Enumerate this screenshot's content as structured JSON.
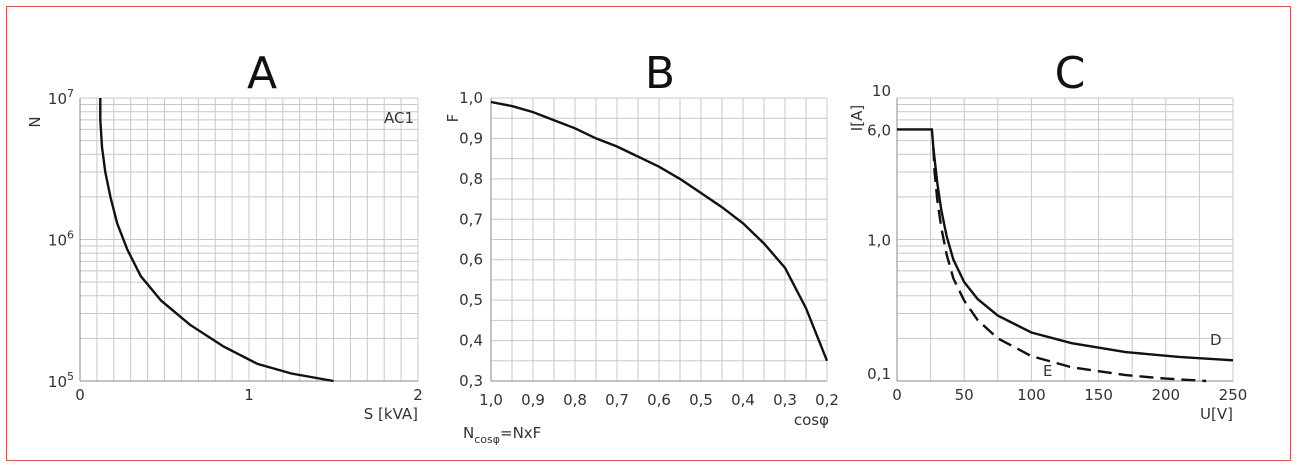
{
  "chart_data": [
    {
      "type": "line",
      "letter": "A",
      "xlabel": "S [kVA]",
      "ylabel": "N",
      "annotation": "AC1",
      "x_ticks": [
        "0",
        "1",
        "2"
      ],
      "y_ticks": [
        {
          "base": "10",
          "exp": "5"
        },
        {
          "base": "10",
          "exp": "6"
        },
        {
          "base": "10",
          "exp": "7"
        }
      ],
      "xlim": [
        0,
        2
      ],
      "ylim": [
        100000,
        10000000
      ],
      "y_scale": "log",
      "grid": true,
      "series": [
        {
          "style": "solid",
          "x": [
            0.12,
            0.12,
            0.13,
            0.15,
            0.18,
            0.22,
            0.28,
            0.36,
            0.48,
            0.65,
            0.85,
            1.05,
            1.25,
            1.5
          ],
          "y": [
            10000000,
            7000000,
            4500000,
            3000000,
            2000000,
            1300000,
            850000,
            550000,
            370000,
            250000,
            175000,
            132000,
            113000,
            100000
          ]
        }
      ]
    },
    {
      "type": "line",
      "letter": "B",
      "xlabel": "cosφ",
      "ylabel": "F",
      "formula": {
        "main": "N",
        "sub": "cosφ",
        "rest": "=NxF"
      },
      "x_ticks": [
        "1,0",
        "0,9",
        "0,8",
        "0,7",
        "0,6",
        "0,5",
        "0,4",
        "0,3",
        "0,2"
      ],
      "y_ticks": [
        "0,3",
        "0,4",
        "0,5",
        "0,6",
        "0,7",
        "0,8",
        "0,9",
        "1,0"
      ],
      "xlim": [
        1.0,
        0.2
      ],
      "ylim": [
        0.3,
        1.0
      ],
      "grid": true,
      "series": [
        {
          "style": "solid",
          "x": [
            1.0,
            0.95,
            0.9,
            0.85,
            0.8,
            0.75,
            0.7,
            0.65,
            0.6,
            0.55,
            0.5,
            0.45,
            0.4,
            0.35,
            0.3,
            0.25,
            0.2
          ],
          "y": [
            0.99,
            0.98,
            0.965,
            0.945,
            0.925,
            0.9,
            0.88,
            0.855,
            0.83,
            0.8,
            0.765,
            0.73,
            0.69,
            0.64,
            0.58,
            0.48,
            0.35
          ]
        }
      ]
    },
    {
      "type": "line",
      "letter": "C",
      "xlabel": "U[V]",
      "ylabel": "I[A]",
      "x_ticks": [
        "0",
        "50",
        "100",
        "150",
        "200",
        "250"
      ],
      "y_ticks": [
        "0,1",
        "1,0",
        "6,0",
        "10"
      ],
      "xlim": [
        0,
        250
      ],
      "ylim": [
        0.1,
        10
      ],
      "y_scale": "log",
      "grid": true,
      "series": [
        {
          "name": "D",
          "style": "solid",
          "x": [
            0,
            26,
            27,
            30,
            33,
            37,
            42,
            50,
            60,
            75,
            100,
            130,
            170,
            210,
            250
          ],
          "y": [
            6.0,
            6.0,
            4.5,
            2.5,
            1.6,
            1.05,
            0.72,
            0.5,
            0.38,
            0.29,
            0.22,
            0.185,
            0.16,
            0.148,
            0.14
          ]
        },
        {
          "name": "E",
          "style": "dashed",
          "x": [
            27,
            28,
            30,
            33,
            37,
            42,
            50,
            60,
            75,
            100,
            130,
            170,
            200,
            230
          ],
          "y": [
            4.5,
            3.0,
            1.9,
            1.2,
            0.78,
            0.53,
            0.37,
            0.27,
            0.2,
            0.15,
            0.125,
            0.11,
            0.104,
            0.1
          ]
        }
      ]
    }
  ]
}
